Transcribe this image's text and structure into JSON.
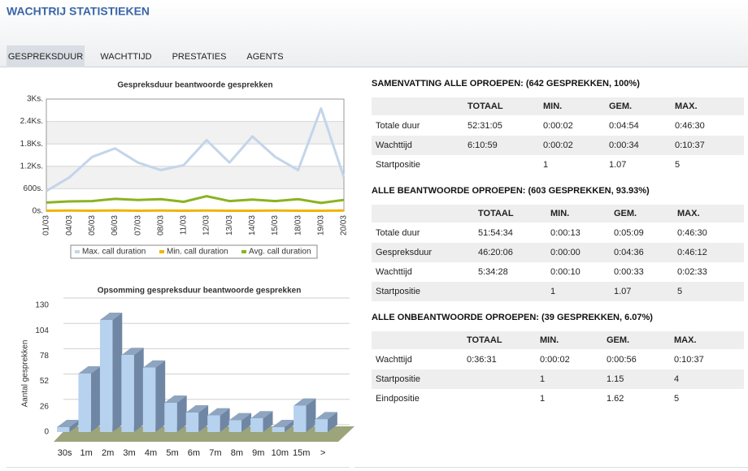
{
  "header": {
    "title": "WACHTRIJ STATISTIEKEN"
  },
  "tabs": {
    "items": [
      "GESPREKSDUUR",
      "WACHTTIJD",
      "PRESTATIES",
      "AGENTS"
    ],
    "active": 0
  },
  "chart_data": [
    {
      "type": "line",
      "title": "Gespreksduur beantwoorde gesprekken",
      "categories": [
        "01/03",
        "04/03",
        "05/03",
        "06/03",
        "07/03",
        "08/03",
        "11/03",
        "12/03",
        "13/03",
        "14/03",
        "15/03",
        "18/03",
        "19/03",
        "20/03"
      ],
      "series": [
        {
          "name": "Max. call duration",
          "color": "#c3d5ea",
          "values": [
            540,
            900,
            1450,
            1680,
            1300,
            1100,
            1230,
            1900,
            1300,
            2000,
            1450,
            1100,
            2750,
            900
          ]
        },
        {
          "name": "Min. call duration",
          "color": "#f2b400",
          "values": [
            10,
            15,
            10,
            20,
            10,
            15,
            10,
            15,
            10,
            10,
            15,
            10,
            10,
            15
          ]
        },
        {
          "name": "Avg. call duration",
          "color": "#8ab320",
          "values": [
            230,
            260,
            270,
            330,
            300,
            320,
            250,
            400,
            270,
            310,
            270,
            320,
            220,
            300
          ]
        }
      ],
      "ylim": [
        0,
        3000
      ],
      "yticks": [
        {
          "value": 0,
          "label": "0s."
        },
        {
          "value": 600,
          "label": "600s."
        },
        {
          "value": 1200,
          "label": "1.2Ks."
        },
        {
          "value": 1800,
          "label": "1.8Ks."
        },
        {
          "value": 2400,
          "label": "2.4Ks."
        },
        {
          "value": 3000,
          "label": "3Ks."
        }
      ],
      "grid": true,
      "banded": true,
      "legend": "bottom"
    },
    {
      "type": "bar3d",
      "title": "Opsomming gespreksduur beantwoorde gesprekken",
      "y_label": "Aantal gesprekken",
      "categories": [
        "30s",
        "1m",
        "2m",
        "3m",
        "4m",
        "5m",
        "6m",
        "7m",
        "8m",
        "9m",
        "10m",
        "15m",
        ">"
      ],
      "values": [
        5,
        60,
        115,
        79,
        66,
        30,
        20,
        17,
        12,
        14,
        5,
        27,
        13
      ],
      "color": "#b7d2ef",
      "ylim": [
        0,
        130
      ],
      "yticks": [
        0,
        26,
        52,
        78,
        104,
        130
      ],
      "grid": true
    }
  ],
  "tables": [
    {
      "title": "SAMENVATTING ALLE OPROEPEN: (642 GESPREKKEN, 100%)",
      "columns": [
        "TOTAAL",
        "MIN.",
        "GEM.",
        "MAX."
      ],
      "links": false,
      "rows": [
        {
          "label": "Totale duur",
          "cells": [
            "52:31:05",
            "0:00:02",
            "0:04:54",
            "0:46:30"
          ]
        },
        {
          "label": "Wachttijd",
          "cells": [
            "6:10:59",
            "0:00:02",
            "0:00:34",
            "0:10:37"
          ]
        },
        {
          "label": "Startpositie",
          "cells": [
            null,
            "1",
            "1.07",
            "5"
          ]
        }
      ]
    },
    {
      "title": "ALLE BEANTWOORDE OPROEPEN: (603 GESPREKKEN, 93.93%)",
      "columns": [
        "TOTAAL",
        "MIN.",
        "GEM.",
        "MAX."
      ],
      "links": true,
      "rows": [
        {
          "label": "Totale duur",
          "cells": [
            "51:54:34",
            "0:00:13",
            "0:05:09",
            "0:46:30"
          ]
        },
        {
          "label": "Gespreksduur",
          "cells": [
            "46:20:06",
            "0:00:00",
            "0:04:36",
            "0:46:12"
          ]
        },
        {
          "label": "Wachttijd",
          "cells": [
            "5:34:28",
            "0:00:10",
            "0:00:33",
            "0:02:33"
          ]
        },
        {
          "label": "Startpositie",
          "cells": [
            null,
            "1",
            "1.07",
            "5"
          ]
        }
      ]
    },
    {
      "title": "ALLE ONBEANTWOORDE OPROEPEN: (39 GESPREKKEN, 6.07%)",
      "columns": [
        "TOTAAL",
        "MIN.",
        "GEM.",
        "MAX."
      ],
      "links": true,
      "rows": [
        {
          "label": "Wachttijd",
          "cells": [
            "0:36:31",
            "0:00:02",
            "0:00:56",
            "0:10:37"
          ]
        },
        {
          "label": "Startpositie",
          "cells": [
            null,
            "1",
            "1.15",
            "4"
          ]
        },
        {
          "label": "Eindpositie",
          "cells": [
            null,
            "1",
            "1.62",
            "5"
          ]
        }
      ]
    }
  ]
}
